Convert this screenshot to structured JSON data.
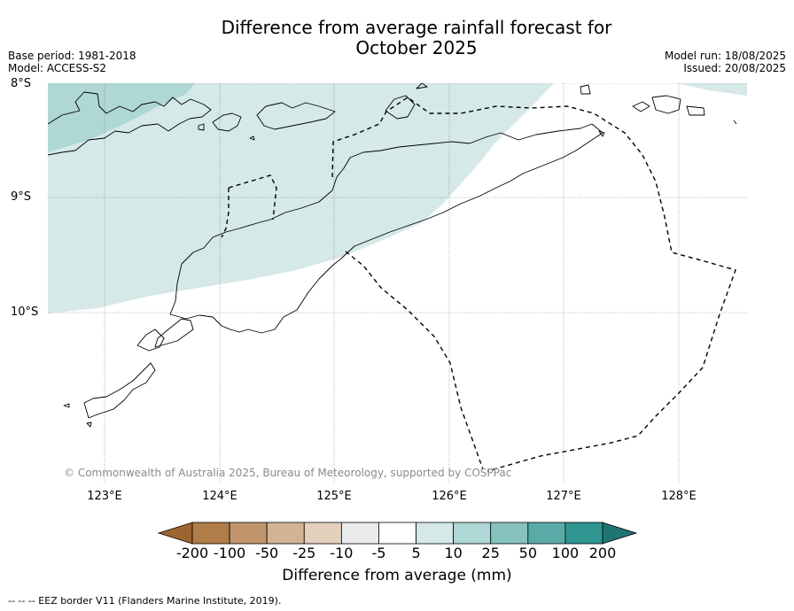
{
  "title_line1": "Difference from average rainfall forecast for",
  "title_line2": "October 2025",
  "meta_left": {
    "base_period": "Base period: 1981-2018",
    "model": "Model: ACCESS-S2"
  },
  "meta_right": {
    "model_run": "Model run: 18/08/2025",
    "issued": "Issued: 20/08/2025"
  },
  "lat_labels": [
    "8°S",
    "9°S",
    "10°S"
  ],
  "lon_labels": [
    "123°E",
    "124°E",
    "125°E",
    "126°E",
    "127°E",
    "128°E"
  ],
  "copyright": "© Commonwealth of Australia 2025, Bureau of Meteorology, supported by COSPPac",
  "colorbar": {
    "ticks": [
      "-200",
      "-100",
      "-50",
      "-25",
      "-10",
      "-5",
      "5",
      "10",
      "25",
      "50",
      "100",
      "200"
    ],
    "colors": [
      "#9c6530",
      "#b07c48",
      "#c0956c",
      "#d2b394",
      "#e3d1be",
      "#ebebeb",
      "#ffffff",
      "#d4e9e8",
      "#aed7d5",
      "#86c3c0",
      "#5aaaa7",
      "#2f9692",
      "#1f7472"
    ],
    "label": "Difference from average (mm)"
  },
  "footnote": "--  --  -- EEZ border V11 (Flanders Marine Institute, 2019)."
}
